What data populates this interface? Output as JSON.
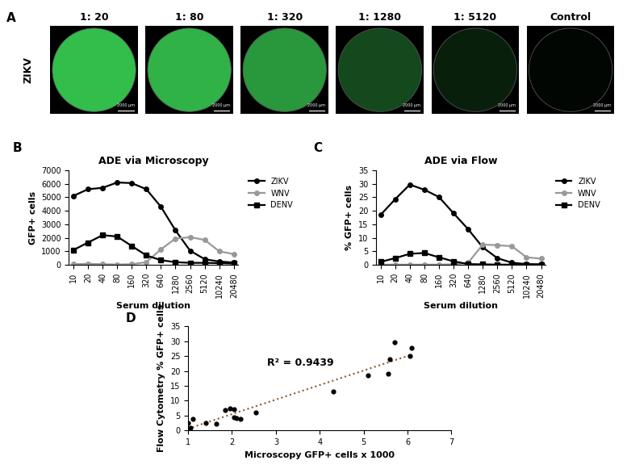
{
  "panel_labels": [
    "A",
    "B",
    "C",
    "D"
  ],
  "panel_a": {
    "row_label": "ZIKV",
    "scale_bar": "2000 µm",
    "images": [
      {
        "label": "1: 20"
      },
      {
        "label": "1: 80"
      },
      {
        "label": "1: 320"
      },
      {
        "label": "1: 1280"
      },
      {
        "label": "1: 5120"
      },
      {
        "label": "Control"
      }
    ]
  },
  "chart_data": [
    {
      "type": "line",
      "title": "ADE via Microscopy",
      "x_label": "Serum dilution",
      "y_label": "GFP+ cells",
      "categories": [
        "10",
        "20",
        "40",
        "80",
        "160",
        "320",
        "640",
        "1280",
        "2560",
        "5120",
        "10240",
        "20480"
      ],
      "series": [
        {
          "name": "ZIKV",
          "color": "#000000",
          "marker": "o",
          "line_style": "solid",
          "values": [
            5100,
            5600,
            5700,
            6100,
            6050,
            5600,
            4300,
            2550,
            1050,
            420,
            250,
            170
          ]
        },
        {
          "name": "WNV",
          "color": "#999999",
          "marker": "o",
          "line_style": "solid",
          "values": [
            50,
            80,
            50,
            30,
            50,
            200,
            1150,
            1950,
            2050,
            1850,
            1000,
            800
          ]
        },
        {
          "name": "DENV",
          "color": "#000000",
          "marker": "s",
          "line_style": "solid",
          "values": [
            1100,
            1650,
            2200,
            2100,
            1400,
            700,
            350,
            200,
            150,
            150,
            130,
            100
          ]
        }
      ],
      "ylim": [
        0,
        7000
      ],
      "yticks": [
        0,
        1000,
        2000,
        3000,
        4000,
        5000,
        6000,
        7000
      ],
      "legend": "upper left"
    },
    {
      "type": "line",
      "title": "ADE via Flow",
      "x_label": "Serum dilution",
      "y_label": "% GFP+ cells",
      "categories": [
        "10",
        "20",
        "40",
        "80",
        "160",
        "320",
        "640",
        "1280",
        "2560",
        "5120",
        "10240",
        "20480"
      ],
      "series": [
        {
          "name": "ZIKV",
          "color": "#000000",
          "marker": "o",
          "line_style": "solid",
          "values": [
            18.5,
            24.3,
            29.7,
            27.8,
            25.1,
            19.1,
            13.2,
            6.5,
            2.5,
            0.8,
            0.3,
            0.2
          ]
        },
        {
          "name": "WNV",
          "color": "#999999",
          "marker": "o",
          "line_style": "solid",
          "values": [
            0.1,
            0.1,
            0.1,
            0.1,
            0.1,
            0.2,
            0.8,
            7.5,
            7.3,
            6.9,
            2.8,
            2.3
          ]
        },
        {
          "name": "DENV",
          "color": "#000000",
          "marker": "s",
          "line_style": "solid",
          "values": [
            1.1,
            2.5,
            4.1,
            4.4,
            2.8,
            1.3,
            0.3,
            0.2,
            0.1,
            0.1,
            0.1,
            0.1
          ]
        }
      ],
      "ylim": [
        0,
        35
      ],
      "yticks": [
        0,
        5,
        10,
        15,
        20,
        25,
        30,
        35
      ],
      "legend": "upper left"
    },
    {
      "type": "scatter",
      "x_label": "Microscopy GFP+ cells x 1000",
      "y_label": "Flow Cytometry % GFP+ cells",
      "annotations": [
        "R² = 0.9439"
      ],
      "color": "#000000",
      "marker": "o",
      "x": [
        1.0,
        1.05,
        1.1,
        1.4,
        1.65,
        1.85,
        1.95,
        2.05,
        2.1,
        2.2,
        2.05,
        2.55,
        4.3,
        5.1,
        5.55,
        5.6,
        5.7,
        6.05,
        6.1
      ],
      "values": [
        2.5,
        0.8,
        3.8,
        2.5,
        2.2,
        6.8,
        7.3,
        7.2,
        4.1,
        3.8,
        4.4,
        6.0,
        13.2,
        18.5,
        19.0,
        24.0,
        29.7,
        25.1,
        27.8
      ],
      "xlim": [
        1,
        7
      ],
      "xticks": [
        1,
        2,
        3,
        4,
        5,
        6,
        7
      ],
      "ylim": [
        0,
        35
      ],
      "yticks": [
        0,
        5,
        10,
        15,
        20,
        25,
        30,
        35
      ]
    }
  ]
}
